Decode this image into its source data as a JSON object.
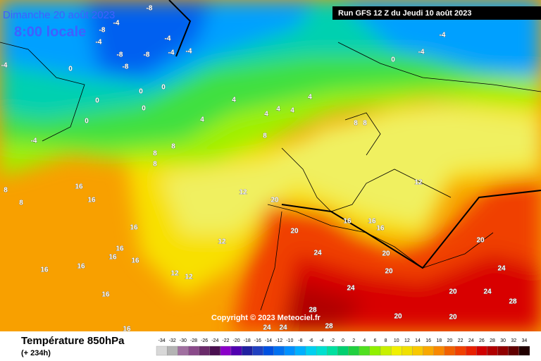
{
  "header": {
    "date": "Dimanche 20 août 2023",
    "time": "8:00 locale",
    "run": "Run GFS 12 Z du Jeudi 10 août 2023"
  },
  "copyright": "Copyright © 2023 Meteociel.fr",
  "footer": {
    "title": "Température 850hPa",
    "lead": "(+ 234h)"
  },
  "legend": {
    "ticks": [
      -34,
      -32,
      -30,
      -28,
      -26,
      -24,
      -22,
      -20,
      -18,
      -16,
      -14,
      -12,
      -10,
      -8,
      -6,
      -4,
      -2,
      0,
      2,
      4,
      6,
      8,
      10,
      12,
      14,
      16,
      18,
      20,
      22,
      24,
      26,
      28,
      30,
      32,
      34
    ],
    "colors": [
      "#d8d8d8",
      "#b4b4b4",
      "#a070a0",
      "#8a4a8a",
      "#6a2a6a",
      "#4a1050",
      "#8a00c8",
      "#5000b0",
      "#2020a0",
      "#2040c0",
      "#0050e0",
      "#0070f0",
      "#0090ff",
      "#00b0ff",
      "#00d0f0",
      "#00e0d0",
      "#00e0a0",
      "#00d070",
      "#20d040",
      "#50e020",
      "#90f000",
      "#c8f000",
      "#f0f000",
      "#f0e000",
      "#f8c800",
      "#f8a800",
      "#f88800",
      "#f06000",
      "#f04000",
      "#e82000",
      "#d00000",
      "#b00000",
      "#900000",
      "#600000",
      "#200000"
    ]
  },
  "contours": [
    -8,
    -4,
    -8,
    -4,
    -8,
    -8,
    -8,
    -4,
    -4,
    -4,
    -4,
    0,
    0,
    0,
    0,
    0,
    0,
    0,
    -4,
    -4,
    -4,
    4,
    4,
    4,
    4,
    4,
    4,
    8,
    8,
    8,
    8,
    8,
    8,
    8,
    8,
    16,
    16,
    16,
    16,
    16,
    16,
    16,
    16,
    16,
    16,
    12,
    12,
    12,
    12,
    12,
    20,
    20,
    16,
    16,
    16,
    20,
    20,
    20,
    24,
    24,
    24,
    20,
    24,
    28,
    28,
    20,
    20,
    24,
    24,
    28
  ]
}
